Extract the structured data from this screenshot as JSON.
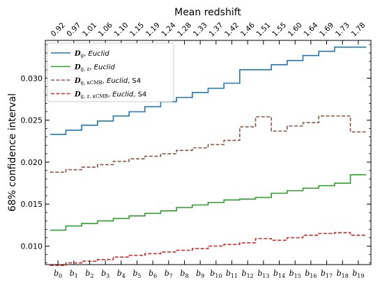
{
  "chart_data": {
    "type": "line",
    "step": true,
    "x_tick_labels": [
      "b_0",
      "b_1",
      "b_2",
      "b_3",
      "b_4",
      "b_5",
      "b_6",
      "b_7",
      "b_8",
      "b_9",
      "b_10",
      "b_11",
      "b_12",
      "b_13",
      "b_14",
      "b_15",
      "b_16",
      "b_17",
      "b_18",
      "b_19"
    ],
    "x_top_label": "Mean redshift",
    "x_top_ticks": [
      "0.92",
      "0.97",
      "1.01",
      "1.06",
      "1.10",
      "1.15",
      "1.19",
      "1.24",
      "1.28",
      "1.33",
      "1.37",
      "1.42",
      "1.46",
      "1.51",
      "1.55",
      "1.60",
      "1.64",
      "1.69",
      "1.73",
      "1.78"
    ],
    "ylabel": "68% confidence interval",
    "ylim": [
      0.0078,
      0.0345
    ],
    "y_ticks": [
      0.01,
      0.015,
      0.02,
      0.025,
      0.03
    ],
    "y_tick_labels": [
      "0.010",
      "0.015",
      "0.020",
      "0.025",
      "0.030"
    ],
    "legend_position": "top-left",
    "series": [
      {
        "name": "D_g, Euclid",
        "label_main": "D",
        "label_sub": "g",
        "label_rest": ", Euclid",
        "color": "#1f77b4",
        "dash": "solid",
        "values": [
          0.0233,
          0.0238,
          0.0244,
          0.0249,
          0.0255,
          0.026,
          0.0266,
          0.0272,
          0.0277,
          0.0283,
          0.0288,
          0.0294,
          0.031,
          0.031,
          0.0316,
          0.0321,
          0.0327,
          0.0332,
          0.0337,
          0.0337
        ]
      },
      {
        "name": "D_g,z, Euclid",
        "label_main": "D",
        "label_sub": "g, z",
        "label_rest": ", Euclid",
        "color": "#2ca02c",
        "dash": "solid",
        "values": [
          0.0119,
          0.0124,
          0.0127,
          0.013,
          0.0133,
          0.0136,
          0.0139,
          0.0142,
          0.0146,
          0.0149,
          0.0152,
          0.0155,
          0.0156,
          0.0158,
          0.0163,
          0.0166,
          0.0169,
          0.0172,
          0.0175,
          0.0185
        ]
      },
      {
        "name": "D_g,κCMB, Euclid, S4",
        "label_main": "D",
        "label_sub": "g, κCMB",
        "label_rest": ", Euclid, S4",
        "color": "#8c564b",
        "dash": "dashed",
        "values": [
          0.0188,
          0.0191,
          0.0194,
          0.0197,
          0.0201,
          0.0204,
          0.0207,
          0.021,
          0.0214,
          0.0217,
          0.0221,
          0.0226,
          0.0242,
          0.0254,
          0.0237,
          0.0243,
          0.0247,
          0.0255,
          0.0255,
          0.0236
        ]
      },
      {
        "name": "D_g,z,κCMB, Euclid, S4",
        "label_main": "D",
        "label_sub": "g, z, κCMB",
        "label_rest": ", Euclid, S4",
        "color": "#d62728",
        "dash": "dashed",
        "values": [
          0.0077,
          0.008,
          0.0082,
          0.0084,
          0.0087,
          0.0089,
          0.0091,
          0.0093,
          0.0095,
          0.0097,
          0.01,
          0.0102,
          0.0104,
          0.0109,
          0.0107,
          0.011,
          0.0113,
          0.0115,
          0.0116,
          0.0113
        ]
      }
    ]
  }
}
